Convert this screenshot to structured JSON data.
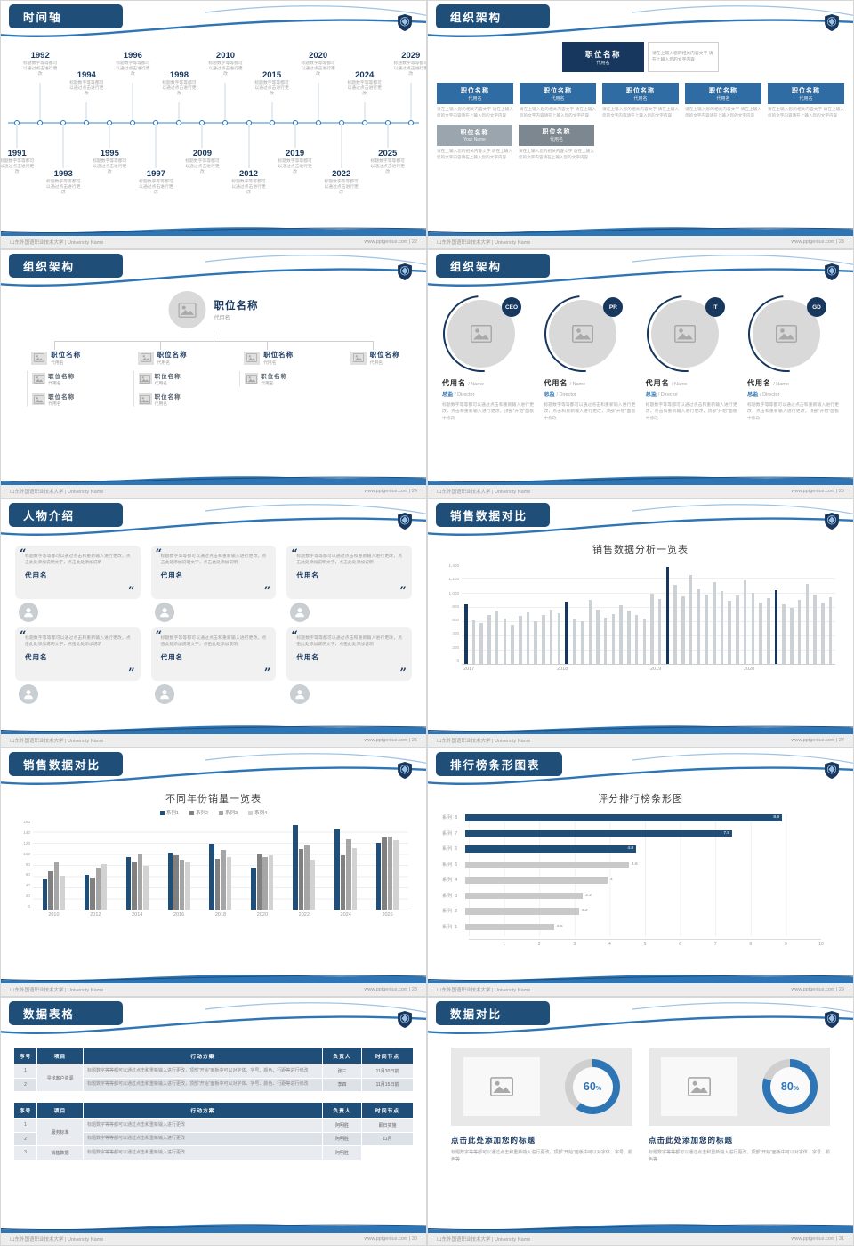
{
  "footer": {
    "school": "山东外国语职业技术大学 | University Name",
    "site": "www.pptgenius.com"
  },
  "slides": {
    "timeline": {
      "title": "时间轴",
      "page": "22",
      "caption": "标题数字等等都可以通过点击进行更改",
      "points": [
        {
          "year": "1991",
          "side": "down",
          "level": 0
        },
        {
          "year": "1992",
          "side": "up",
          "level": 0
        },
        {
          "year": "1993",
          "side": "down",
          "level": 1
        },
        {
          "year": "1994",
          "side": "up",
          "level": 1
        },
        {
          "year": "1995",
          "side": "down",
          "level": 0
        },
        {
          "year": "1996",
          "side": "up",
          "level": 0
        },
        {
          "year": "1997",
          "side": "down",
          "level": 1
        },
        {
          "year": "1998",
          "side": "up",
          "level": 1
        },
        {
          "year": "2009",
          "side": "down",
          "level": 0
        },
        {
          "year": "2010",
          "side": "up",
          "level": 0
        },
        {
          "year": "2012",
          "side": "down",
          "level": 1
        },
        {
          "year": "2015",
          "side": "up",
          "level": 1
        },
        {
          "year": "2019",
          "side": "down",
          "level": 0
        },
        {
          "year": "2020",
          "side": "up",
          "level": 0
        },
        {
          "year": "2022",
          "side": "down",
          "level": 1
        },
        {
          "year": "2024",
          "side": "up",
          "level": 1
        },
        {
          "year": "2025",
          "side": "down",
          "level": 0
        },
        {
          "year": "2029",
          "side": "up",
          "level": 0
        }
      ]
    },
    "org1": {
      "title": "组织架构",
      "page": "23",
      "root": {
        "name": "职位名称",
        "alias": "代用名"
      },
      "root_note": "请在上输入您的相关内容文字 请在上输入您的文字内容",
      "row1": [
        {
          "name": "职位名称",
          "alias": "代用名",
          "note": "请在上输入您的相关内容文字 请在上输入您的文字内容请在上输入您的文字内容"
        },
        {
          "name": "职位名称",
          "alias": "代用名",
          "note": "请在上输入您的相关内容文字 请在上输入您的文字内容请在上输入您的文字内容"
        },
        {
          "name": "职位名称",
          "alias": "代用名",
          "note": "请在上输入您的相关内容文字 请在上输入您的文字内容请在上输入您的文字内容"
        },
        {
          "name": "职位名称",
          "alias": "代用名",
          "note": "请在上输入您的相关内容文字 请在上输入您的文字内容请在上输入您的文字内容"
        },
        {
          "name": "职位名称",
          "alias": "代用名",
          "note": "请在上输入您的相关内容文字 请在上输入您的文字内容请在上输入您的文字内容"
        }
      ],
      "row2": [
        {
          "name": "职位名称",
          "alias": "Your Name",
          "note": "请在上输入您的相关内容文字 请在上输入您的文字内容请在上输入您的文字内容"
        },
        {
          "name": "职位名称",
          "alias": "代用名",
          "note": "请在上输入您的相关内容文字 请在上输入您的文字内容请在上输入您的文字内容"
        }
      ]
    },
    "org2": {
      "title": "组织架构",
      "page": "24",
      "root": {
        "name": "职位名称",
        "alias": "代用名"
      },
      "heads": [
        {
          "name": "职位名称",
          "alias": "代用名"
        },
        {
          "name": "职位名称",
          "alias": "代用名"
        },
        {
          "name": "职位名称",
          "alias": "代用名"
        },
        {
          "name": "职位名称",
          "alias": "代用名"
        }
      ],
      "subs1": [
        {
          "name": "职位名称",
          "alias": "代用名"
        },
        {
          "name": "职位名称",
          "alias": "代用名"
        }
      ],
      "subs2": [
        {
          "name": "职位名称",
          "alias": "代用名"
        },
        {
          "name": "职位名称",
          "alias": "代用名"
        }
      ],
      "subs3": [
        {
          "name": "职位名称",
          "alias": "代用名"
        }
      ]
    },
    "org3": {
      "title": "组织架构",
      "page": "25",
      "members": [
        {
          "badge": "CEO",
          "name": "代用名",
          "name_en": "/ Name",
          "role": "总监",
          "role_en": "/ Director",
          "note": "标题数字等等都可以通过点击和重新输入进行更改，点击和重新输入进行更改，顶部“开始”面板中修改"
        },
        {
          "badge": "PR",
          "name": "代用名",
          "name_en": "/ Name",
          "role": "总监",
          "role_en": "/ Director",
          "note": "标题数字等等都可以通过点击和重新输入进行更改，点击和重新输入进行更改，顶部“开始”面板中修改"
        },
        {
          "badge": "IT",
          "name": "代用名",
          "name_en": "/ Name",
          "role": "总监",
          "role_en": "/ Director",
          "note": "标题数字等等都可以通过点击和重新输入进行更改，点击和重新输入进行更改，顶部“开始”面板中修改"
        },
        {
          "badge": "GD",
          "name": "代用名",
          "name_en": "/ Name",
          "role": "总监",
          "role_en": "/ Director",
          "note": "标题数字等等都可以通过点击和重新输入进行更改，点击和重新输入进行更改，顶部“开始”面板中修改"
        }
      ]
    },
    "people": {
      "title": "人物介绍",
      "page": "26",
      "cards": [
        {
          "quote": "标题数字等等都可以通过点击和重新输入进行更改，点击此处添加说明文字，点击此处添加说明",
          "name": "代用名"
        },
        {
          "quote": "标题数字等等都可以通过点击和重新输入进行更改，点击此处添加说明文字，点击此处添加说明",
          "name": "代用名"
        },
        {
          "quote": "标题数字等等都可以通过点击和重新输入进行更改，点击此处添加说明文字，点击此处添加说明",
          "name": "代用名"
        },
        {
          "quote": "标题数字等等都可以通过点击和重新输入进行更改，点击此处添加说明文字，点击此处添加说明",
          "name": "代用名"
        },
        {
          "quote": "标题数字等等都可以通过点击和重新输入进行更改，点击此处添加说明文字，点击此处添加说明",
          "name": "代用名"
        },
        {
          "quote": "标题数字等等都可以通过点击和重新输入进行更改，点击此处添加说明文字，点击此处添加说明",
          "name": "代用名"
        }
      ]
    },
    "sales1": {
      "title": "销售数据对比",
      "page": "27",
      "chart": {
        "type": "bar",
        "chart_title": "销售数据分析一览表",
        "ymax": 1400,
        "y_ticks": [
          "1,400",
          "1,200",
          "1,000",
          "800",
          "600",
          "400",
          "200",
          "0"
        ],
        "x_labels": [
          "2017",
          "2018",
          "2019",
          "2020"
        ],
        "values": [
          850,
          620,
          580,
          700,
          760,
          640,
          560,
          680,
          730,
          610,
          690,
          770,
          720,
          880,
          640,
          600,
          910,
          770,
          650,
          710,
          830,
          760,
          690,
          640,
          1000,
          920,
          1380,
          1120,
          960,
          1260,
          1060,
          990,
          1160,
          1030,
          890,
          970,
          1190,
          1010,
          870,
          930,
          1050,
          850,
          790,
          910,
          1140,
          980,
          870,
          950
        ],
        "highlight": [
          0,
          13,
          26,
          40
        ]
      }
    },
    "sales2": {
      "title": "销售数据对比",
      "page": "28",
      "chart": {
        "type": "grouped-bar",
        "chart_title": "不同年份销量一览表",
        "ymax": 160,
        "y_ticks": [
          "160",
          "140",
          "120",
          "100",
          "80",
          "60",
          "40",
          "20",
          "0"
        ],
        "categories": [
          "2010",
          "2012",
          "2014",
          "2016",
          "2018",
          "2020",
          "2022",
          "2024",
          "2026"
        ],
        "series": [
          {
            "name": "系列1",
            "color": "#1f4e79",
            "values": [
              55,
              63,
              96,
              104,
              120,
              76,
              153,
              146,
              122
            ]
          },
          {
            "name": "系列2",
            "color": "#808080",
            "values": [
              70,
              58,
              88,
              98,
              92,
              101,
              110,
              99,
              131
            ]
          },
          {
            "name": "系列3",
            "color": "#a6a6a6",
            "values": [
              88,
              76,
              101,
              91,
              108,
              95,
              117,
              127,
              133
            ]
          },
          {
            "name": "系列4",
            "color": "#d2d2d2",
            "values": [
              61,
              82,
              79,
              86,
              96,
              99,
              91,
              111,
              126
            ]
          }
        ]
      }
    },
    "ranking": {
      "title": "排行榜条形图表",
      "page": "29",
      "chart": {
        "type": "hbar",
        "chart_title": "评分排行榜条形图",
        "xmax": 10,
        "x_ticks": [
          "1",
          "2",
          "3",
          "4",
          "5",
          "6",
          "7",
          "8",
          "9",
          "10"
        ],
        "items": [
          {
            "label": "系列 8",
            "value": 8.9,
            "display": "8.9",
            "highlight": true
          },
          {
            "label": "系列 7",
            "value": 7.5,
            "display": "7.5",
            "highlight": true
          },
          {
            "label": "系列 6",
            "value": 4.8,
            "display": "4.8",
            "highlight": true
          },
          {
            "label": "系列 5",
            "value": 4.6,
            "display": "4.6",
            "highlight": false
          },
          {
            "label": "系列 4",
            "value": 4,
            "display": "4",
            "highlight": false
          },
          {
            "label": "系列 3",
            "value": 3.3,
            "display": "3.3",
            "highlight": false
          },
          {
            "label": "系列 2",
            "value": 3.2,
            "display": "3.2",
            "highlight": false
          },
          {
            "label": "系列 1",
            "value": 2.5,
            "display": "2.5",
            "highlight": false
          }
        ]
      }
    },
    "table": {
      "title": "数据表格",
      "page": "30",
      "headers": [
        "序号",
        "项目",
        "行动方案",
        "负责人",
        "时间节点"
      ],
      "t1": {
        "project": "寻找客户资源",
        "rows": [
          {
            "no": "1",
            "plan": "标题数字等等都可以通过点击和重新输入进行更改，顶部“开始”面板中可以对字体、字号、颜色、行距等进行修改",
            "owner": "张三",
            "time": "11月30日前"
          },
          {
            "no": "2",
            "plan": "标题数字等等都可以通过点击和重新输入进行更改，顶部“开始”面板中可以对字体、字号、颜色、行距等进行修改",
            "owner": "李四",
            "time": "11月15日前"
          }
        ]
      },
      "t2": {
        "project1": "服务标准",
        "project2": "销售数据",
        "rows": [
          {
            "no": "1",
            "plan": "标题数字等等都可以通过点击和重新输入进行更改",
            "owner": "阿明胜",
            "time": "即日实施"
          },
          {
            "no": "2",
            "plan": "标题数字等等都可以通过点击和重新输入进行更改",
            "owner": "阿明胜",
            "time": "11月"
          },
          {
            "no": "3",
            "plan": "标题数字等等都可以通过点击和重新输入进行更改",
            "owner": "阿明胜",
            "time": "至少1次/月"
          }
        ]
      }
    },
    "compare": {
      "title": "数据对比",
      "page": "31",
      "panels": [
        {
          "percent": 60,
          "value_label": "60",
          "unit": "%",
          "title": "点击此处添加您的标题",
          "note": "标题数字等等都可以通过点击和重新输入进行更改，顶部“开始”面板中可以对字体、字号、颜色等"
        },
        {
          "percent": 80,
          "value_label": "80",
          "unit": "%",
          "title": "点击此处添加您的标题",
          "note": "标题数字等等都可以通过点击和重新输入进行更改，顶部“开始”面板中可以对字体、字号、颜色等"
        }
      ]
    }
  }
}
